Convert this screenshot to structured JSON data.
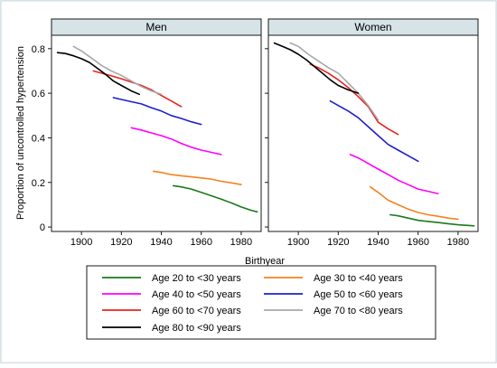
{
  "chart_data": {
    "type": "line",
    "ylabel": "Proportion of uncontrolled hypertension",
    "xlabel": "Birthyear",
    "xlim": [
      1885,
      1990
    ],
    "ylim": [
      -0.02,
      0.86
    ],
    "x_ticks": [
      1900,
      1920,
      1940,
      1960,
      1980
    ],
    "y_ticks": [
      0,
      0.2,
      0.4,
      0.6,
      0.8
    ],
    "y_tick_labels": [
      "0",
      "0.2",
      "0.4",
      "0.6",
      "0.8"
    ],
    "grid": false,
    "legend_position": "bottom",
    "panels": [
      {
        "title": "Men",
        "series": [
          {
            "name": "Age 20 to <30 years",
            "color": "#1a7a1a",
            "x": [
              1946,
              1950,
              1955,
              1960,
              1965,
              1970,
              1975,
              1980,
              1985,
              1988
            ],
            "y": [
              0.185,
              0.18,
              0.17,
              0.155,
              0.14,
              0.125,
              0.108,
              0.09,
              0.075,
              0.068
            ]
          },
          {
            "name": "Age 30 to <40 years",
            "color": "#f5821f",
            "x": [
              1936,
              1940,
              1945,
              1950,
              1955,
              1960,
              1965,
              1970,
              1975,
              1980
            ],
            "y": [
              0.25,
              0.245,
              0.235,
              0.23,
              0.225,
              0.22,
              0.215,
              0.205,
              0.198,
              0.19
            ]
          },
          {
            "name": "Age 40 to <50 years",
            "color": "#ff00ff",
            "x": [
              1925,
              1930,
              1935,
              1940,
              1945,
              1950,
              1955,
              1960,
              1965,
              1970
            ],
            "y": [
              0.445,
              0.435,
              0.422,
              0.41,
              0.395,
              0.375,
              0.358,
              0.345,
              0.335,
              0.325
            ]
          },
          {
            "name": "Age 50 to <60 years",
            "color": "#1f1fcc",
            "x": [
              1916,
              1920,
              1925,
              1930,
              1935,
              1940,
              1945,
              1950,
              1955,
              1960
            ],
            "y": [
              0.58,
              0.572,
              0.562,
              0.552,
              0.535,
              0.52,
              0.5,
              0.487,
              0.472,
              0.46
            ]
          },
          {
            "name": "Age 60 to <70 years",
            "color": "#e8231f",
            "x": [
              1906,
              1910,
              1915,
              1920,
              1925,
              1930,
              1935,
              1940,
              1945,
              1950
            ],
            "y": [
              0.7,
              0.69,
              0.678,
              0.665,
              0.65,
              0.635,
              0.615,
              0.59,
              0.565,
              0.54
            ]
          },
          {
            "name": "Age 70 to <80 years",
            "color": "#a8a8a8",
            "x": [
              1896,
              1900,
              1905,
              1910,
              1915,
              1920,
              1925,
              1930,
              1935,
              1940
            ],
            "y": [
              0.81,
              0.79,
              0.758,
              0.725,
              0.7,
              0.68,
              0.655,
              0.63,
              0.61,
              0.595
            ]
          },
          {
            "name": "Age 80 to <90 years",
            "color": "#000000",
            "x": [
              1888,
              1892,
              1896,
              1900,
              1904,
              1908,
              1912,
              1916,
              1920,
              1925,
              1929
            ],
            "y": [
              0.782,
              0.778,
              0.768,
              0.755,
              0.738,
              0.712,
              0.685,
              0.655,
              0.635,
              0.61,
              0.595
            ]
          }
        ]
      },
      {
        "title": "Women",
        "series": [
          {
            "name": "Age 20 to <30 years",
            "color": "#1a7a1a",
            "x": [
              1946,
              1950,
              1955,
              1960,
              1965,
              1970,
              1975,
              1980,
              1985,
              1988
            ],
            "y": [
              0.055,
              0.05,
              0.04,
              0.03,
              0.025,
              0.02,
              0.015,
              0.01,
              0.007,
              0.005
            ]
          },
          {
            "name": "Age 30 to <40 years",
            "color": "#f5821f",
            "x": [
              1936,
              1940,
              1945,
              1950,
              1955,
              1960,
              1965,
              1970,
              1975,
              1980
            ],
            "y": [
              0.18,
              0.155,
              0.12,
              0.1,
              0.08,
              0.065,
              0.055,
              0.048,
              0.04,
              0.035
            ]
          },
          {
            "name": "Age 40 to <50 years",
            "color": "#ff00ff",
            "x": [
              1926,
              1930,
              1935,
              1940,
              1945,
              1950,
              1955,
              1960,
              1965,
              1970
            ],
            "y": [
              0.325,
              0.31,
              0.285,
              0.26,
              0.235,
              0.21,
              0.19,
              0.17,
              0.16,
              0.15
            ]
          },
          {
            "name": "Age 50 to <60 years",
            "color": "#1f1fcc",
            "x": [
              1916,
              1920,
              1925,
              1930,
              1935,
              1940,
              1945,
              1950,
              1955,
              1960
            ],
            "y": [
              0.565,
              0.545,
              0.52,
              0.49,
              0.45,
              0.41,
              0.37,
              0.345,
              0.32,
              0.295
            ]
          },
          {
            "name": "Age 60 to <70 years",
            "color": "#e8231f",
            "x": [
              1906,
              1910,
              1915,
              1920,
              1925,
              1930,
              1935,
              1940,
              1945,
              1950
            ],
            "y": [
              0.73,
              0.715,
              0.69,
              0.66,
              0.625,
              0.585,
              0.54,
              0.47,
              0.44,
              0.415
            ]
          },
          {
            "name": "Age 70 to <80 years",
            "color": "#a8a8a8",
            "x": [
              1896,
              1900,
              1905,
              1910,
              1915,
              1920,
              1925,
              1930,
              1935,
              1940
            ],
            "y": [
              0.825,
              0.81,
              0.775,
              0.745,
              0.715,
              0.69,
              0.645,
              0.6,
              0.545,
              0.48
            ]
          },
          {
            "name": "Age 80 to <90 years",
            "color": "#000000",
            "x": [
              1888,
              1892,
              1896,
              1900,
              1904,
              1908,
              1912,
              1916,
              1920,
              1925,
              1930
            ],
            "y": [
              0.825,
              0.81,
              0.795,
              0.775,
              0.75,
              0.72,
              0.69,
              0.66,
              0.635,
              0.615,
              0.6
            ]
          }
        ]
      }
    ]
  }
}
